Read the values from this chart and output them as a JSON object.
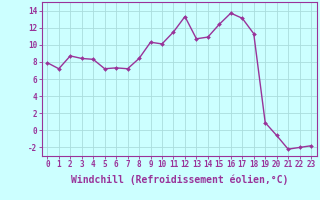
{
  "hours": [
    0,
    1,
    2,
    3,
    4,
    5,
    6,
    7,
    8,
    9,
    10,
    11,
    12,
    13,
    14,
    15,
    16,
    17,
    18,
    19,
    20,
    21,
    22,
    23
  ],
  "windchill": [
    7.9,
    7.2,
    8.7,
    8.4,
    8.3,
    7.2,
    7.3,
    7.2,
    8.4,
    10.3,
    10.1,
    11.5,
    13.3,
    10.7,
    10.9,
    12.4,
    13.7,
    13.1,
    11.3,
    0.9,
    -0.6,
    -2.2,
    -2.0,
    -1.8
  ],
  "line_color": "#993399",
  "marker": "D",
  "marker_size": 2.0,
  "bg_color": "#ccffff",
  "grid_color": "#aadddd",
  "xlabel": "Windchill (Refroidissement éolien,°C)",
  "xlim": [
    -0.5,
    23.5
  ],
  "ylim": [
    -3,
    15
  ],
  "yticks": [
    -2,
    0,
    2,
    4,
    6,
    8,
    10,
    12,
    14
  ],
  "xticks": [
    0,
    1,
    2,
    3,
    4,
    5,
    6,
    7,
    8,
    9,
    10,
    11,
    12,
    13,
    14,
    15,
    16,
    17,
    18,
    19,
    20,
    21,
    22,
    23
  ],
  "axis_color": "#993399",
  "tick_color": "#993399",
  "label_fontsize": 7,
  "tick_fontsize": 5.5,
  "linewidth": 1.0
}
